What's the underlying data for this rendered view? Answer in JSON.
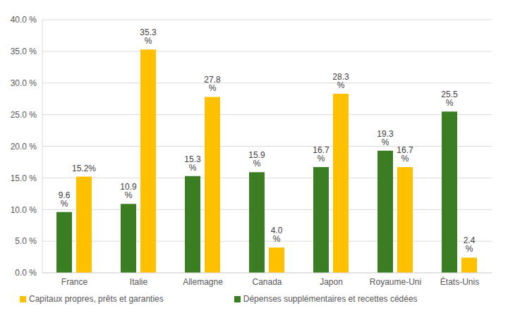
{
  "chart_data": {
    "type": "bar",
    "categories": [
      "France",
      "Italie",
      "Allemagne",
      "Canada",
      "Japon",
      "Royaume-Uni",
      "États-Unis"
    ],
    "series": [
      {
        "name": "Dépenses supplémentaires et recettes cédées",
        "color": "#3b7d23",
        "values": [
          9.6,
          10.9,
          15.3,
          15.9,
          16.7,
          19.3,
          25.5
        ],
        "value_labels": [
          "9.6 %",
          "10.9 %",
          "15.3 %",
          "15.9 %",
          "16.7 %",
          "19.3 %",
          "25.5 %"
        ]
      },
      {
        "name": "Capitaux propres, prêts et garanties",
        "color": "#ffc000",
        "values": [
          15.2,
          35.3,
          27.8,
          4.0,
          28.3,
          16.7,
          2.4
        ],
        "value_labels": [
          "15.2%",
          "35.3 %",
          "27.8 %",
          "4.0 %",
          "28.3 %",
          "16.7 %",
          "2.4 %"
        ]
      }
    ],
    "ylim": [
      0,
      40
    ],
    "yticks": [
      {
        "value": 0,
        "label": "0.0 %"
      },
      {
        "value": 5,
        "label": "5.0 %"
      },
      {
        "value": 10,
        "label": "10.0 %"
      },
      {
        "value": 15,
        "label": "15.0 %"
      },
      {
        "value": 20,
        "label": "20.0 %"
      },
      {
        "value": 25,
        "label": "25.0 %"
      },
      {
        "value": 30,
        "label": "30.0 %"
      },
      {
        "value": 35,
        "label": "35.0 %"
      },
      {
        "value": 40,
        "label": "40.0 %"
      }
    ],
    "grid": true,
    "legend": "bottom",
    "data_labels": true
  }
}
